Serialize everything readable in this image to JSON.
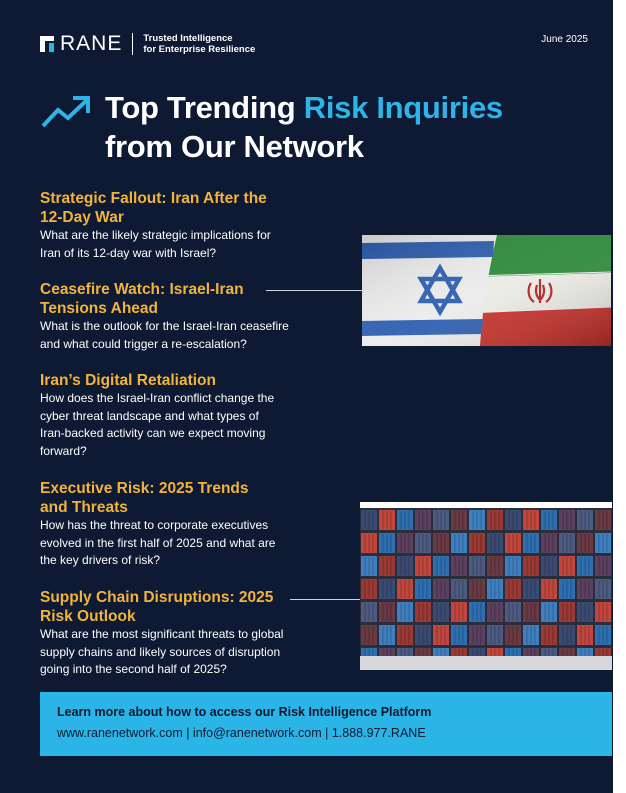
{
  "header": {
    "logo_text": "RANE",
    "tagline_line1": "Trusted Intelligence",
    "tagline_line2": "for Enterprise Resilience",
    "date": "June 2025"
  },
  "headline": {
    "line1_prefix": "Top Trending ",
    "line1_accent": "Risk Inquiries",
    "line2": "from Our Network"
  },
  "items": [
    {
      "title_lines": [
        "Strategic Fallout: Iran After the",
        "12-Day War"
      ],
      "body_lines": [
        "What are the likely strategic implications for",
        "Iran of its 12-day war with Israel?"
      ]
    },
    {
      "title_lines": [
        "Ceasefire Watch: Israel-Iran",
        "Tensions Ahead"
      ],
      "body_lines": [
        "What is the outlook for the Israel-Iran ceasefire",
        "and what could trigger a re-escalation?"
      ]
    },
    {
      "title_lines": [
        "Iran’s Digital Retaliation"
      ],
      "body_lines": [
        "How does the Israel-Iran conflict change the",
        "cyber threat landscape and what types of",
        "Iran-backed activity can we expect moving",
        "forward?"
      ]
    },
    {
      "title_lines": [
        "Executive Risk: 2025 Trends",
        "and Threats"
      ],
      "body_lines": [
        "How has the threat to corporate executives",
        "evolved in the first half of 2025 and what are",
        "the key drivers of risk?"
      ]
    },
    {
      "title_lines": [
        "Supply Chain Disruptions: 2025",
        "Risk Outlook"
      ],
      "body_lines": [
        "What are the most significant threats to global",
        "supply chains and likely sources of disruption",
        "going into the second half of 2025?"
      ]
    }
  ],
  "images": {
    "flags_icon": "israel-iran-flags-image",
    "containers_icon": "shipping-containers-image"
  },
  "colors": {
    "background": "#0e1a33",
    "accent_blue": "#2db5e8",
    "title_gold": "#f0b43c",
    "cta_blue": "#2ab5e6"
  },
  "cta": {
    "title": "Learn more about how to access our Risk Intelligence Platform",
    "links": "www.ranenetwork.com | info@ranenetwork.com | 1.888.977.RANE"
  }
}
